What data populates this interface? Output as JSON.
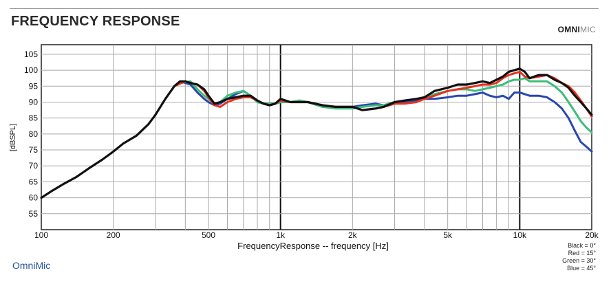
{
  "header": {
    "title": "FREQUENCY RESPONSE",
    "logo_bold": "OMNI",
    "logo_light": "MIC"
  },
  "footer": {
    "brand": "OmniMic"
  },
  "legend": [
    "Black = 0°",
    "Red = 15°",
    "Green = 30°",
    "Blue = 45°"
  ],
  "colors": {
    "black": "#111111",
    "red": "#e8321e",
    "green": "#3dbd7a",
    "blue": "#2947b0",
    "grid": "#a8a8a8"
  },
  "chart_data": {
    "type": "line",
    "title": "FREQUENCY RESPONSE",
    "xlabel": "FrequencyResponse -- frequency [Hz]",
    "ylabel": "[dBSPL]",
    "x_scale": "log",
    "xlim": [
      100,
      20000
    ],
    "ylim": [
      50,
      108
    ],
    "grid": true,
    "x_ticks": [
      {
        "v": 100,
        "label": "100"
      },
      {
        "v": 200,
        "label": "200"
      },
      {
        "v": 500,
        "label": "500"
      },
      {
        "v": 1000,
        "label": "1k"
      },
      {
        "v": 2000,
        "label": "2k"
      },
      {
        "v": 5000,
        "label": "5k"
      },
      {
        "v": 10000,
        "label": "10k"
      },
      {
        "v": 20000,
        "label": "20k"
      }
    ],
    "y_ticks": [
      55,
      60,
      65,
      70,
      75,
      80,
      85,
      90,
      95,
      100,
      105
    ],
    "series": [
      {
        "name": "Black = 0°",
        "color": "#111111",
        "x": [
          100,
          110,
          125,
          140,
          160,
          180,
          200,
          220,
          250,
          280,
          300,
          330,
          360,
          380,
          400,
          420,
          450,
          480,
          500,
          530,
          560,
          600,
          650,
          700,
          750,
          800,
          850,
          900,
          950,
          1000,
          1100,
          1200,
          1300,
          1500,
          1700,
          2000,
          2200,
          2500,
          2700,
          3000,
          3300,
          3700,
          4000,
          4400,
          5000,
          5500,
          6000,
          6500,
          7000,
          7500,
          8000,
          8500,
          9000,
          9500,
          10000,
          10500,
          11000,
          12000,
          13000,
          14000,
          15000,
          16000,
          17000,
          18000,
          19000,
          20000
        ],
        "y": [
          60,
          62,
          64.5,
          66.5,
          69.5,
          72,
          74.5,
          77,
          79.5,
          83,
          86,
          91,
          95,
          96.5,
          96.5,
          96,
          95.5,
          94,
          92,
          89.5,
          90,
          91,
          91.5,
          92,
          92,
          90.5,
          89.5,
          89,
          89.5,
          91,
          90,
          90,
          90,
          89,
          88.5,
          88.5,
          87.5,
          88,
          88.5,
          90,
          90.5,
          91,
          91.5,
          93.5,
          94.5,
          95.5,
          95.5,
          96,
          96.5,
          96,
          97,
          98,
          99.5,
          100,
          100.5,
          99.5,
          97.5,
          98.5,
          98.5,
          97,
          96,
          94.5,
          92,
          90,
          88,
          86
        ]
      },
      {
        "name": "Red = 15°",
        "color": "#e8321e",
        "x": [
          360,
          400,
          420,
          450,
          480,
          500,
          530,
          560,
          600,
          650,
          700,
          750,
          800,
          850,
          900,
          950,
          1000,
          1100,
          1200,
          1300,
          1500,
          1700,
          2000,
          2200,
          2500,
          2700,
          3000,
          3300,
          3700,
          4000,
          4400,
          5000,
          5500,
          6000,
          6500,
          7000,
          7500,
          8000,
          8500,
          9000,
          9500,
          10000,
          10500,
          11000,
          12000,
          13000,
          14000,
          15000,
          16000,
          17000,
          18000,
          19000,
          20000
        ],
        "y": [
          95,
          96.5,
          96,
          95.5,
          93.5,
          91.5,
          89,
          88.5,
          90,
          91,
          91.5,
          91.5,
          90.5,
          89.5,
          89,
          89.5,
          90.5,
          90,
          90,
          90,
          89,
          88.5,
          88.5,
          87.5,
          88,
          88.5,
          89.5,
          89.5,
          90,
          91,
          92,
          93.5,
          94,
          94.5,
          95,
          95.5,
          95.5,
          96,
          97.5,
          98.5,
          99,
          99.5,
          98,
          97.5,
          98,
          98.5,
          97.5,
          96,
          95,
          93,
          90.5,
          88,
          85.5
        ]
      },
      {
        "name": "Green = 30°",
        "color": "#3dbd7a",
        "x": [
          380,
          420,
          450,
          480,
          500,
          530,
          560,
          600,
          650,
          700,
          750,
          800,
          850,
          900,
          950,
          1000,
          1100,
          1200,
          1300,
          1500,
          1700,
          2000,
          2200,
          2500,
          2700,
          3000,
          3300,
          3700,
          4000,
          4400,
          5000,
          5500,
          6000,
          6500,
          7000,
          7500,
          8000,
          8500,
          9000,
          9500,
          10000,
          10500,
          11000,
          12000,
          13000,
          14000,
          15000,
          16000,
          17000,
          18000,
          19000,
          20000
        ],
        "y": [
          96,
          96.5,
          94,
          92,
          91,
          89.5,
          90,
          92,
          93,
          93.5,
          92,
          90,
          89.5,
          89.5,
          89.5,
          90,
          90,
          90.5,
          90,
          88.5,
          88,
          88,
          88.5,
          89,
          89,
          90,
          90.5,
          91,
          91.5,
          92.5,
          93.5,
          94,
          94,
          93.5,
          94,
          94.5,
          95,
          95.5,
          96.5,
          97,
          97,
          97.5,
          96.5,
          96.5,
          96.5,
          95,
          93,
          90,
          87,
          84,
          82,
          80.5
        ]
      },
      {
        "name": "Blue = 45°",
        "color": "#2947b0",
        "x": [
          380,
          420,
          450,
          480,
          500,
          530,
          560,
          600,
          650,
          700,
          750,
          800,
          850,
          900,
          950,
          1000,
          1100,
          1200,
          1300,
          1500,
          1700,
          2000,
          2200,
          2500,
          2700,
          3000,
          3300,
          3700,
          4000,
          4400,
          5000,
          5500,
          6000,
          6500,
          7000,
          7500,
          8000,
          8500,
          9000,
          9500,
          10000,
          10500,
          11000,
          12000,
          13000,
          14000,
          15000,
          16000,
          17000,
          18000,
          19000,
          20000
        ],
        "y": [
          96.5,
          95.5,
          93,
          91,
          90,
          89,
          89.5,
          91,
          92.5,
          93.5,
          92,
          90.5,
          89.5,
          89,
          89.5,
          90,
          90,
          90.5,
          90,
          88.5,
          88.5,
          88.5,
          89,
          89.5,
          89,
          90,
          90,
          90.5,
          91,
          91,
          91.5,
          92,
          92,
          92.5,
          93,
          92,
          91.5,
          92,
          91,
          93,
          93,
          92.5,
          92,
          92,
          91.5,
          90,
          88,
          85,
          81,
          77.5,
          76,
          74.5
        ]
      }
    ]
  }
}
